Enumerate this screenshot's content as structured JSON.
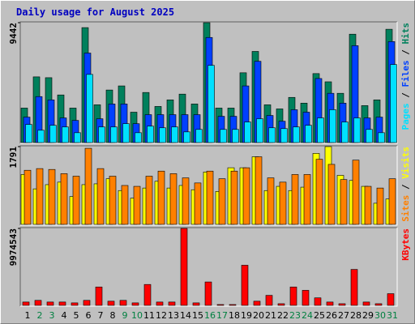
{
  "title": "Daily usage for August 2025",
  "chart_data": [
    {
      "type": "bar",
      "ylim": [
        0,
        9442
      ],
      "yticks": [
        9442
      ],
      "legend_separator": " / ",
      "series": [
        {
          "name": "Pages",
          "color": "#00e0ff",
          "values": [
            1423,
            970,
            1358,
            1229,
            776,
            5368,
            1229,
            1229,
            1487,
            776,
            1293,
            1164,
            1229,
            841,
            1035,
            6079,
            1035,
            1035,
            1617,
            1875,
            1164,
            1099,
            1229,
            1358,
            1940,
            2587,
            1617,
            1940,
            1035,
            776,
            6144
          ]
        },
        {
          "name": "Files",
          "color": "#0040ff",
          "values": [
            2005,
            3622,
            3363,
            1940,
            1746,
            7049,
            1875,
            3039,
            3039,
            1487,
            2199,
            2199,
            2199,
            2199,
            2199,
            8278,
            2069,
            2069,
            4462,
            6402,
            2134,
            1681,
            2587,
            2393,
            5044,
            3880,
            3104,
            7631,
            1940,
            2005,
            7954
          ]
        },
        {
          "name": "Hits",
          "color": "#00805c",
          "values": [
            2716,
            5174,
            5109,
            3751,
            2716,
            9054,
            2975,
            4139,
            4462,
            2393,
            3945,
            2845,
            3363,
            3816,
            3039,
            9442,
            2716,
            2716,
            5497,
            7178,
            2975,
            2651,
            3557,
            3104,
            5432,
            4786,
            3880,
            8536,
            2910,
            3363,
            8924
          ]
        }
      ]
    },
    {
      "type": "bar",
      "ylim": [
        0,
        1791
      ],
      "yticks": [
        1791
      ],
      "legend_separator": " / ",
      "series": [
        {
          "name": "Sites",
          "color": "#ff8000",
          "values": [
            1246,
            1285,
            1265,
            1168,
            1110,
            1752,
            1285,
            1110,
            896,
            876,
            1110,
            1227,
            1168,
            1071,
            954,
            1227,
            1051,
            1227,
            1304,
            1557,
            1071,
            973,
            1149,
            1149,
            1499,
            1382,
            1032,
            1480,
            876,
            837,
            1051
          ]
        },
        {
          "name": "Visits",
          "color": "#ffff00",
          "values": [
            1149,
            818,
            915,
            973,
            642,
            915,
            934,
            1051,
            779,
            604,
            837,
            993,
            837,
            896,
            798,
            1207,
            759,
            1304,
            1304,
            1557,
            779,
            876,
            779,
            857,
            1635,
            1791,
            1129,
            1012,
            876,
            487,
            584
          ]
        }
      ]
    },
    {
      "type": "bar",
      "ylim": [
        0,
        9974543
      ],
      "yticks": [
        9974543
      ],
      "categories": [
        "1",
        "2",
        "3",
        "4",
        "5",
        "6",
        "7",
        "8",
        "9",
        "10",
        "11",
        "12",
        "13",
        "14",
        "15",
        "16",
        "17",
        "18",
        "19",
        "20",
        "21",
        "22",
        "23",
        "24",
        "25",
        "26",
        "27",
        "28",
        "29",
        "30",
        "31"
      ],
      "category_colors": [
        "#000000",
        "#008040",
        "#008040",
        "#000000",
        "#000000",
        "#000000",
        "#000000",
        "#000000",
        "#008040",
        "#008040",
        "#000000",
        "#000000",
        "#000000",
        "#000000",
        "#000000",
        "#008040",
        "#008040",
        "#000000",
        "#000000",
        "#000000",
        "#000000",
        "#000000",
        "#008040",
        "#008040",
        "#000000",
        "#000000",
        "#000000",
        "#000000",
        "#000000",
        "#008040",
        "#008040"
      ],
      "series": [
        {
          "name": "KBytes",
          "color": "#ff0000",
          "values": [
            433676,
            650514,
            433676,
            433676,
            325257,
            650514,
            2385218,
            542095,
            650514,
            325257,
            2710475,
            433676,
            433676,
            9974543,
            325257,
            3035732,
            108419,
            108419,
            5204112,
            542095,
            1301028,
            216838,
            2385218,
            1951542,
            975771,
            433676,
            216838,
            4662017,
            433676,
            216838,
            1517866
          ]
        }
      ]
    }
  ]
}
